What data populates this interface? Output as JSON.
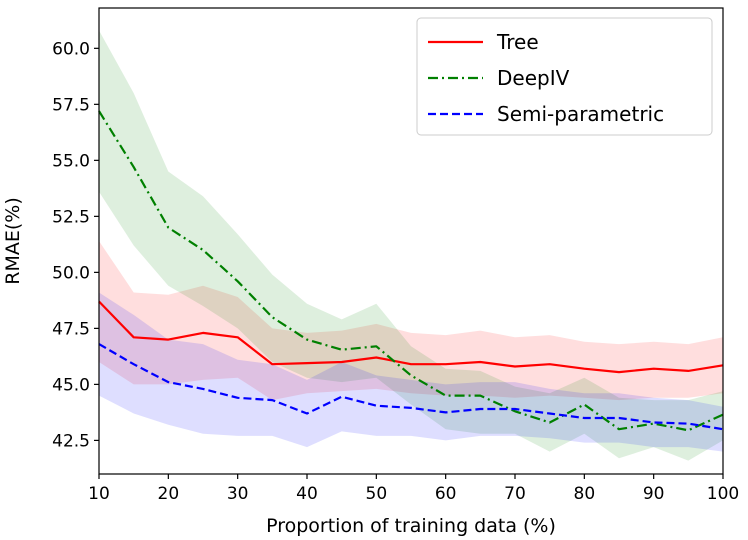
{
  "chart_data": {
    "type": "line",
    "xlabel": "Proportion of training data (%)",
    "ylabel": "RMAE(%)",
    "xlim": [
      10,
      100
    ],
    "ylim": [
      41.0,
      61.8
    ],
    "x_ticks": [
      10,
      20,
      30,
      40,
      50,
      60,
      70,
      80,
      90,
      100
    ],
    "y_ticks": [
      "42.5",
      "45.0",
      "47.5",
      "50.0",
      "52.5",
      "55.0",
      "57.5",
      "60.0"
    ],
    "grid": false,
    "legend_position": "top-right",
    "x": [
      10,
      15,
      20,
      25,
      30,
      35,
      40,
      45,
      50,
      55,
      60,
      65,
      70,
      75,
      80,
      85,
      90,
      95,
      100
    ],
    "series": [
      {
        "name": "Tree",
        "color": "#ff0000",
        "linestyle": "solid",
        "values": [
          48.7,
          47.1,
          47.0,
          47.3,
          47.1,
          45.9,
          45.95,
          46.0,
          46.2,
          45.9,
          45.9,
          46.0,
          45.8,
          45.9,
          45.7,
          45.55,
          45.7,
          45.6,
          45.85
        ],
        "lower": [
          46.0,
          45.0,
          45.0,
          45.2,
          45.3,
          44.3,
          44.6,
          44.7,
          44.8,
          44.6,
          44.5,
          44.5,
          44.4,
          44.5,
          44.4,
          44.3,
          44.4,
          44.4,
          44.6
        ],
        "upper": [
          51.4,
          49.1,
          49.0,
          49.4,
          48.9,
          47.5,
          47.3,
          47.4,
          47.7,
          47.3,
          47.2,
          47.4,
          47.1,
          47.2,
          46.9,
          46.8,
          46.9,
          46.8,
          47.1
        ]
      },
      {
        "name": "DeepIV",
        "color": "#008000",
        "linestyle": "dashdot",
        "values": [
          57.2,
          54.7,
          52.0,
          51.0,
          49.6,
          48.0,
          47.0,
          46.55,
          46.7,
          45.4,
          44.5,
          44.5,
          43.8,
          43.3,
          44.1,
          43.0,
          43.25,
          42.95,
          43.65
        ],
        "lower": [
          53.6,
          51.2,
          49.4,
          48.5,
          47.5,
          46.0,
          45.3,
          45.1,
          45.3,
          44.1,
          43.0,
          42.8,
          42.8,
          42.0,
          42.8,
          41.7,
          42.2,
          41.6,
          42.5
        ],
        "upper": [
          60.8,
          58.0,
          54.5,
          53.4,
          51.7,
          49.9,
          48.6,
          47.9,
          48.6,
          46.7,
          45.7,
          45.6,
          44.9,
          44.6,
          45.3,
          44.4,
          44.3,
          44.3,
          44.7
        ]
      },
      {
        "name": "Semi-parametric",
        "color": "#0000ff",
        "linestyle": "dashed",
        "values": [
          46.8,
          45.9,
          45.1,
          44.8,
          44.4,
          44.3,
          43.7,
          44.45,
          44.05,
          43.95,
          43.75,
          43.9,
          43.9,
          43.7,
          43.5,
          43.5,
          43.3,
          43.25,
          43.0
        ],
        "lower": [
          44.5,
          43.7,
          43.2,
          42.8,
          42.7,
          42.7,
          42.2,
          42.9,
          42.7,
          42.7,
          42.5,
          42.7,
          42.7,
          42.6,
          42.4,
          42.4,
          42.2,
          42.2,
          42.0
        ],
        "upper": [
          49.1,
          48.1,
          47.0,
          46.8,
          46.1,
          45.9,
          45.2,
          46.0,
          45.4,
          45.2,
          45.0,
          45.1,
          45.1,
          44.8,
          44.6,
          44.6,
          44.4,
          44.3,
          44.0
        ]
      }
    ]
  }
}
